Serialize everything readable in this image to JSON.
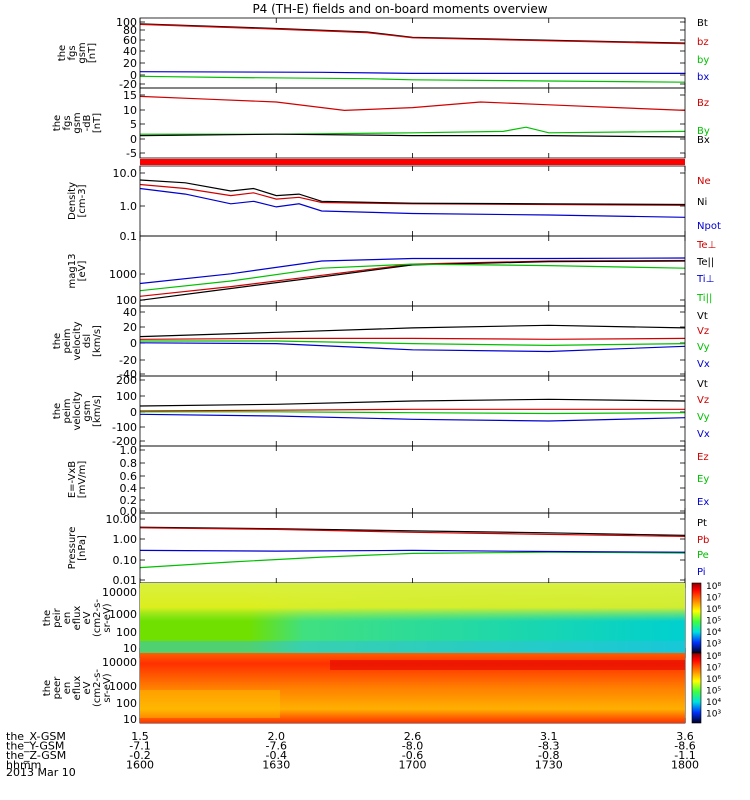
{
  "title": "P4 (TH-E) fields and on-board moments overview",
  "footer": {
    "rows": [
      {
        "label": "the_X-GSM",
        "values": [
          "1.5",
          "2.0",
          "2.6",
          "3.1",
          "3.6"
        ]
      },
      {
        "label": "the_Y-GSM",
        "values": [
          "-7.1",
          "-7.6",
          "-8.0",
          "-8.3",
          "-8.6"
        ]
      },
      {
        "label": "the_Z-GSM",
        "values": [
          "-0.2",
          "-0.4",
          "-0.6",
          "-0.8",
          "-1.1"
        ]
      },
      {
        "label": "hhmm",
        "values": [
          "1600",
          "1630",
          "1700",
          "1730",
          "1800"
        ]
      }
    ],
    "date": "2013 Mar 10"
  },
  "chart_data": [
    {
      "type": "line",
      "ylabel": [
        "the",
        "fgs",
        "gsm",
        "[nT]"
      ],
      "yticks": [
        "100",
        "80",
        "60",
        "40",
        "20",
        "0",
        "-20"
      ],
      "ylim": [
        -20,
        100
      ],
      "legend": [
        {
          "name": "Bt",
          "color": "#000000"
        },
        {
          "name": "bz",
          "color": "#d00000"
        },
        {
          "name": "by",
          "color": "#00c000"
        },
        {
          "name": "bx",
          "color": "#0000d0"
        }
      ],
      "series": [
        {
          "name": "Bt",
          "color": "#000000",
          "x": [
            1600,
            1630,
            1650,
            1700,
            1730,
            1800
          ],
          "y": [
            90,
            82,
            76,
            67,
            62,
            57
          ]
        },
        {
          "name": "bz",
          "color": "#d00000",
          "x": [
            1600,
            1630,
            1650,
            1700,
            1730,
            1800
          ],
          "y": [
            89,
            81,
            75,
            66,
            61,
            56
          ]
        },
        {
          "name": "by",
          "color": "#00c000",
          "x": [
            1600,
            1620,
            1650,
            1700,
            1730,
            1800
          ],
          "y": [
            0,
            -2,
            -4,
            -6,
            -8,
            -10
          ]
        },
        {
          "name": "bx",
          "color": "#0000d0",
          "x": [
            1600,
            1640,
            1700,
            1760,
            1800
          ],
          "y": [
            8,
            7,
            5,
            5,
            6
          ]
        }
      ]
    },
    {
      "type": "line",
      "ylabel": [
        "the",
        "fgs",
        "gsm",
        "-dB",
        "[nT]"
      ],
      "yticks": [
        "15",
        "10",
        "5",
        "0",
        "-5"
      ],
      "ylim": [
        -8,
        17
      ],
      "legend": [
        {
          "name": "Bz",
          "color": "#d00000"
        },
        {
          "name": "By",
          "color": "#00c000"
        },
        {
          "name": "Bx",
          "color": "#000000"
        }
      ],
      "series": [
        {
          "name": "Bz",
          "color": "#d00000",
          "x": [
            1600,
            1615,
            1630,
            1645,
            1700,
            1715,
            1730,
            1745,
            1800
          ],
          "y": [
            14,
            13,
            12,
            9,
            10,
            12,
            11,
            10,
            9
          ]
        },
        {
          "name": "By",
          "color": "#00c000",
          "x": [
            1600,
            1630,
            1700,
            1720,
            1725,
            1730,
            1800
          ],
          "y": [
            0.5,
            0.5,
            1,
            1.5,
            3,
            1,
            1.5
          ]
        },
        {
          "name": "Bx",
          "color": "#000000",
          "x": [
            1600,
            1630,
            1700,
            1730,
            1800
          ],
          "y": [
            0,
            0.5,
            0,
            0,
            -0.5
          ]
        }
      ]
    },
    {
      "type": "line",
      "ylabel": [
        "Density",
        "[cm-3]"
      ],
      "yscale": "log",
      "yticks": [
        "10.0",
        "1.0",
        "0.1"
      ],
      "ylim": [
        0.1,
        15
      ],
      "legend": [
        {
          "name": "Ne",
          "color": "#d00000"
        },
        {
          "name": "Ni",
          "color": "#000000"
        },
        {
          "name": "Npot",
          "color": "#0000d0"
        }
      ],
      "series": [
        {
          "name": "Ne",
          "color": "#d00000",
          "x": [
            1600,
            1610,
            1620,
            1625,
            1630,
            1635,
            1640,
            1700,
            1730,
            1800
          ],
          "y": [
            4,
            3,
            1.8,
            2.2,
            1.4,
            1.6,
            1.1,
            1.0,
            0.95,
            0.9
          ]
        },
        {
          "name": "Ni",
          "color": "#000000",
          "x": [
            1600,
            1610,
            1620,
            1625,
            1630,
            1635,
            1640,
            1700,
            1730,
            1800
          ],
          "y": [
            5.5,
            4.5,
            2.5,
            3,
            1.8,
            2,
            1.2,
            1.05,
            1.0,
            0.95
          ]
        },
        {
          "name": "Npot",
          "color": "#0000d0",
          "x": [
            1600,
            1610,
            1620,
            1625,
            1630,
            1635,
            1640,
            1700,
            1730,
            1800
          ],
          "y": [
            3,
            2,
            1.0,
            1.2,
            0.8,
            1.0,
            0.6,
            0.5,
            0.45,
            0.38
          ]
        }
      ]
    },
    {
      "type": "line",
      "ylabel": [
        "mag13",
        "[eV]"
      ],
      "yscale": "log",
      "yticks": [
        "1000",
        "100"
      ],
      "ylim": [
        100,
        15000
      ],
      "legend": [
        {
          "name": "Te⊥",
          "color": "#d00000"
        },
        {
          "name": "Te||",
          "color": "#000000"
        },
        {
          "name": "Ti⊥",
          "color": "#0000d0"
        },
        {
          "name": "Ti||",
          "color": "#00c000"
        }
      ],
      "series": [
        {
          "name": "Te⊥",
          "color": "#d00000",
          "x": [
            1600,
            1620,
            1640,
            1700,
            1730,
            1800
          ],
          "y": [
            200,
            400,
            900,
            2000,
            2500,
            2600
          ]
        },
        {
          "name": "Te||",
          "color": "#000000",
          "x": [
            1600,
            1620,
            1640,
            1700,
            1730,
            1800
          ],
          "y": [
            150,
            350,
            800,
            1900,
            2400,
            2500
          ]
        },
        {
          "name": "Ti⊥",
          "color": "#0000d0",
          "x": [
            1600,
            1620,
            1640,
            1700,
            1730,
            1800
          ],
          "y": [
            500,
            1000,
            2500,
            3000,
            3000,
            3100
          ]
        },
        {
          "name": "Ti||",
          "color": "#00c000",
          "x": [
            1600,
            1620,
            1640,
            1700,
            1730,
            1800
          ],
          "y": [
            300,
            600,
            1500,
            2000,
            1800,
            1500
          ]
        }
      ]
    },
    {
      "type": "line",
      "ylabel": [
        "the",
        "peim",
        "velocity",
        "dsl",
        "[km/s]"
      ],
      "yticks": [
        "40",
        "20",
        "0",
        "-20",
        "-40"
      ],
      "ylim": [
        -40,
        40
      ],
      "legend": [
        {
          "name": "Vt",
          "color": "#000000"
        },
        {
          "name": "Vz",
          "color": "#d00000"
        },
        {
          "name": "Vy",
          "color": "#00c000"
        },
        {
          "name": "Vx",
          "color": "#0000d0"
        }
      ],
      "series": [
        {
          "name": "Vt",
          "color": "#000000",
          "x": [
            1600,
            1630,
            1700,
            1730,
            1800
          ],
          "y": [
            5,
            10,
            15,
            18,
            15
          ]
        },
        {
          "name": "Vz",
          "color": "#d00000",
          "x": [
            1600,
            1630,
            1700,
            1730,
            1800
          ],
          "y": [
            2,
            3,
            3,
            2,
            3
          ]
        },
        {
          "name": "Vy",
          "color": "#00c000",
          "x": [
            1600,
            1630,
            1700,
            1730,
            1800
          ],
          "y": [
            0,
            0,
            -3,
            -5,
            -3
          ]
        },
        {
          "name": "Vx",
          "color": "#0000d0",
          "x": [
            1600,
            1630,
            1700,
            1730,
            1800
          ],
          "y": [
            -2,
            -3,
            -10,
            -12,
            -6
          ]
        }
      ]
    },
    {
      "type": "line",
      "ylabel": [
        "the",
        "peim",
        "velocity",
        "gsm",
        "[km/s]"
      ],
      "yticks": [
        "200",
        "100",
        "0",
        "-100",
        "-200"
      ],
      "ylim": [
        -200,
        220
      ],
      "legend": [
        {
          "name": "Vt",
          "color": "#000000"
        },
        {
          "name": "Vz",
          "color": "#d00000"
        },
        {
          "name": "Vy",
          "color": "#00c000"
        },
        {
          "name": "Vx",
          "color": "#0000d0"
        }
      ],
      "series": [
        {
          "name": "Vt",
          "color": "#000000",
          "x": [
            1600,
            1630,
            1700,
            1730,
            1800
          ],
          "y": [
            40,
            50,
            70,
            80,
            70
          ]
        },
        {
          "name": "Vz",
          "color": "#d00000",
          "x": [
            1600,
            1630,
            1700,
            1730,
            1800
          ],
          "y": [
            10,
            15,
            20,
            20,
            20
          ]
        },
        {
          "name": "Vy",
          "color": "#00c000",
          "x": [
            1600,
            1630,
            1700,
            1730,
            1800
          ],
          "y": [
            5,
            5,
            0,
            -5,
            0
          ]
        },
        {
          "name": "Vx",
          "color": "#0000d0",
          "x": [
            1600,
            1630,
            1700,
            1730,
            1800
          ],
          "y": [
            -10,
            -20,
            -40,
            -50,
            -30
          ]
        }
      ]
    },
    {
      "type": "line",
      "ylabel": [
        "E=-VxB",
        "[mV/m]"
      ],
      "yticks": [
        "1.0",
        "0.8",
        "0.6",
        "0.4",
        "0.2",
        "0.0"
      ],
      "ylim": [
        0,
        1
      ],
      "legend": [
        {
          "name": "Ez",
          "color": "#d00000"
        },
        {
          "name": "Ey",
          "color": "#00c000"
        },
        {
          "name": "Ex",
          "color": "#0000d0"
        }
      ],
      "series": []
    },
    {
      "type": "line",
      "ylabel": [
        "Pressure",
        "[nPa]"
      ],
      "yscale": "log",
      "yticks": [
        "10.00",
        "1.00",
        "0.10",
        "0.01"
      ],
      "ylim": [
        0.01,
        15
      ],
      "legend": [
        {
          "name": "Pt",
          "color": "#000000"
        },
        {
          "name": "Pb",
          "color": "#d00000"
        },
        {
          "name": "Pe",
          "color": "#00c000"
        },
        {
          "name": "Pi",
          "color": "#0000d0"
        }
      ],
      "series": [
        {
          "name": "Pt",
          "color": "#000000",
          "x": [
            1600,
            1630,
            1700,
            1730,
            1800
          ],
          "y": [
            3.4,
            2.9,
            2.3,
            1.9,
            1.45
          ]
        },
        {
          "name": "Pb",
          "color": "#d00000",
          "x": [
            1600,
            1630,
            1700,
            1730,
            1800
          ],
          "y": [
            3.2,
            2.7,
            2.0,
            1.6,
            1.3
          ]
        },
        {
          "name": "Pe",
          "color": "#00c000",
          "x": [
            1600,
            1620,
            1640,
            1700,
            1730,
            1800
          ],
          "y": [
            0.05,
            0.09,
            0.15,
            0.22,
            0.25,
            0.23
          ]
        },
        {
          "name": "Pi",
          "color": "#0000d0",
          "x": [
            1600,
            1630,
            1700,
            1730,
            1800
          ],
          "y": [
            0.3,
            0.28,
            0.3,
            0.27,
            0.25
          ]
        }
      ]
    },
    {
      "type": "heatmap",
      "ylabel": [
        "the",
        "peir",
        "en",
        "eflux",
        "eV",
        "(cm2-s-",
        "sr-eV)"
      ],
      "yscale": "log",
      "yticks": [
        "10000",
        "1000",
        "100",
        "10"
      ],
      "colorbar_ticks": [
        "10⁸",
        "10⁷",
        "10⁶",
        "10⁵",
        "10⁴",
        "10³"
      ]
    },
    {
      "type": "heatmap",
      "ylabel": [
        "the",
        "peer",
        "en",
        "eflux",
        "eV",
        "(cm2-s-",
        "sr-eV)"
      ],
      "yscale": "log",
      "yticks": [
        "10000",
        "1000",
        "100",
        "10"
      ],
      "colorbar_ticks": [
        "10⁸",
        "10⁷",
        "10⁶",
        "10⁵",
        "10⁴",
        "10³"
      ]
    }
  ]
}
